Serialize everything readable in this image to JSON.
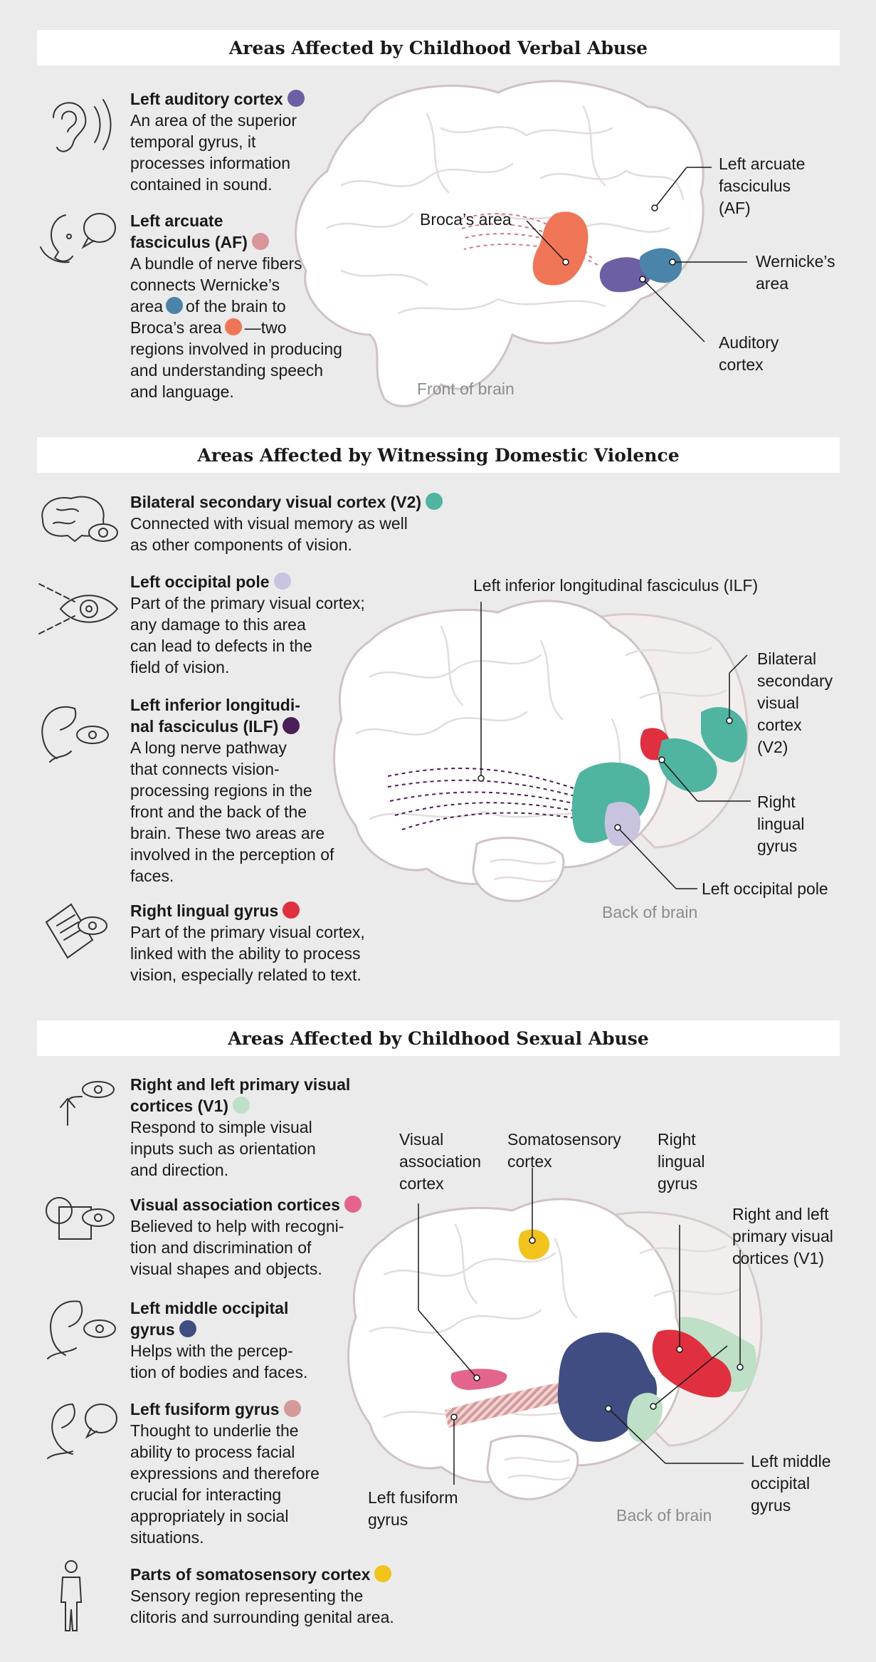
{
  "colors": {
    "auditory": "#6e5ea3",
    "arcuate": "#d9959a",
    "wernicke": "#4a84a8",
    "broca": "#f07556",
    "v2": "#4fb5a0",
    "occipital_pole": "#c8c3df",
    "ilf": "#4a1f57",
    "lingual": "#e0303f",
    "v1": "#bde0c6",
    "visual_assoc": "#e3658b",
    "middle_occipital": "#3f4d82",
    "fusiform": "#d49a9a",
    "somatosensory": "#f2c31a"
  },
  "sections": [
    {
      "title": "Areas Affected by Childhood Verbal Abuse",
      "items": [
        {
          "icon": "ear-icon",
          "title": "Left auditory cortex",
          "desc": [
            "An area of the superior",
            "temporal gyrus, it",
            "processes information",
            "contained in sound."
          ]
        },
        {
          "icon": "speaking-face-icon",
          "title_lines": [
            "Left arcuate",
            "fasciculus (AF)"
          ],
          "desc_lines": [
            "A bundle of nerve fibers",
            "connects Wernicke’s",
            "area",
            "of the brain to",
            "Broca’s area",
            "—two",
            "regions involved in producing",
            "and understanding speech",
            "and language."
          ]
        }
      ],
      "labels": {
        "arcuate": [
          "Left arcuate",
          "fasciculus",
          "(AF)"
        ],
        "broca": "Broca’s area",
        "wernicke": [
          "Wernicke’s",
          "area"
        ],
        "auditory": [
          "Auditory",
          "cortex"
        ],
        "caption": "Front of brain"
      }
    },
    {
      "title": "Areas Affected by Witnessing Domestic Violence",
      "items": [
        {
          "icon": "brain-eye-icon",
          "title": "Bilateral secondary visual cortex (V2)",
          "desc": [
            "Connected with visual memory as well",
            "as other components of vision."
          ]
        },
        {
          "icon": "eye-field-icon",
          "title": "Left occipital pole",
          "desc": [
            "Part of the primary visual cortex;",
            "any damage to this area",
            "can lead to defects in the",
            "field of vision."
          ]
        },
        {
          "icon": "face-eye-icon",
          "title_lines": [
            "Left inferior longitudi-",
            "nal fasciculus (ILF)"
          ],
          "desc": [
            "A long nerve pathway",
            "that connects vision-",
            "processing regions in the",
            "front and the back of the",
            "brain. These two areas are",
            "involved in the perception of",
            "faces."
          ]
        },
        {
          "icon": "reading-eye-icon",
          "title": "Right lingual gyrus",
          "desc": [
            "Part of the primary visual cortex,",
            "linked with the ability to process",
            "vision, especially related to text."
          ]
        }
      ],
      "labels": {
        "ilf": "Left inferior longitudinal fasciculus (ILF)",
        "v2": [
          "Bilateral",
          "secondary",
          "visual",
          "cortex",
          "(V2)"
        ],
        "lingual": [
          "Right",
          "lingual",
          "gyrus"
        ],
        "pole": "Left occipital pole",
        "caption": "Back of brain"
      }
    },
    {
      "title": "Areas Affected by Childhood Sexual Abuse",
      "items": [
        {
          "icon": "arrow-eye-icon",
          "title_lines": [
            "Right and left primary visual",
            "cortices (V1)"
          ],
          "desc": [
            "Respond to simple visual",
            "inputs such as orientation",
            "and direction."
          ]
        },
        {
          "icon": "shapes-eye-icon",
          "title": "Visual association cortices",
          "desc": [
            "Believed to help with recogni-",
            "tion and discrimination of",
            "visual shapes and objects."
          ]
        },
        {
          "icon": "person-eye-icon",
          "title_lines": [
            "Left middle occipital",
            "gyrus"
          ],
          "desc": [
            "Helps with the percep-",
            "tion of bodies and faces."
          ]
        },
        {
          "icon": "faces-talk-icon",
          "title": "Left fusiform gyrus",
          "desc": [
            "Thought to underlie the",
            "ability to process facial",
            "expressions and therefore",
            "crucial for interacting",
            "appropriately in social",
            "situations."
          ]
        },
        {
          "icon": "body-icon",
          "title": "Parts of somatosensory cortex",
          "desc": [
            "Sensory region representing the",
            "clitoris and surrounding genital area."
          ]
        }
      ],
      "labels": {
        "visual_assoc": [
          "Visual",
          "association",
          "cortex"
        ],
        "somatosensory": [
          "Somatosensory",
          "cortex"
        ],
        "lingual": [
          "Right",
          "lingual",
          "gyrus"
        ],
        "v1": [
          "Right and left",
          "primary visual",
          "cortices (V1)"
        ],
        "middle_occipital": [
          "Left middle",
          "occipital",
          "gyrus"
        ],
        "fusiform": [
          "Left fusiform",
          "gyrus"
        ],
        "caption": "Back of brain"
      }
    }
  ]
}
